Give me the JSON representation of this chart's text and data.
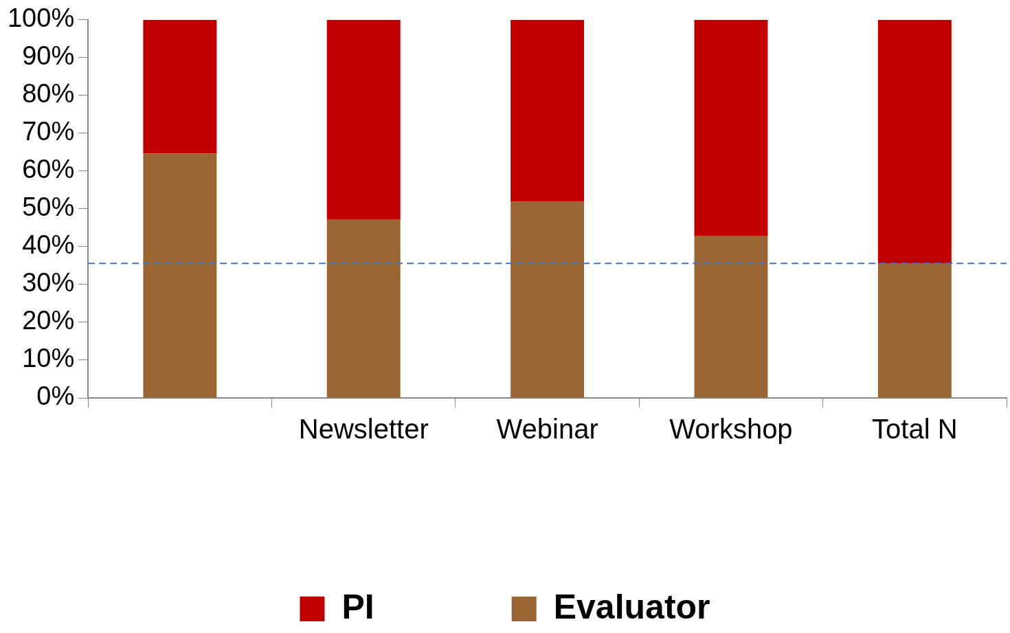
{
  "chart_data": {
    "type": "bar",
    "stacked": true,
    "categories": [
      null,
      "Newsletter",
      "Webinar",
      "Workshop",
      "Total N"
    ],
    "series": [
      {
        "name": "Evaluator",
        "color": "#996633",
        "values": [
          64.6,
          47.1,
          51.9,
          42.9,
          35.5
        ]
      },
      {
        "name": "PI",
        "color": "#c00000",
        "values": [
          35.4,
          52.9,
          48.1,
          57.1,
          64.5
        ]
      }
    ],
    "ylim": [
      0,
      100
    ],
    "yticks": [
      {
        "value": 0,
        "label": "0%"
      },
      {
        "value": 10,
        "label": "10%"
      },
      {
        "value": 20,
        "label": "20%"
      },
      {
        "value": 30,
        "label": "30%"
      },
      {
        "value": 40,
        "label": "40%"
      },
      {
        "value": 50,
        "label": "50%"
      },
      {
        "value": 60,
        "label": "60%"
      },
      {
        "value": 70,
        "label": "70%"
      },
      {
        "value": 80,
        "label": "80%"
      },
      {
        "value": 90,
        "label": "90%"
      },
      {
        "value": 100,
        "label": "100%"
      }
    ],
    "ref_lines": [
      {
        "axis": "y",
        "value": 35.6,
        "color": "#4472c4",
        "line_style": "dashed"
      }
    ],
    "grid": false,
    "legend": "bottom"
  }
}
